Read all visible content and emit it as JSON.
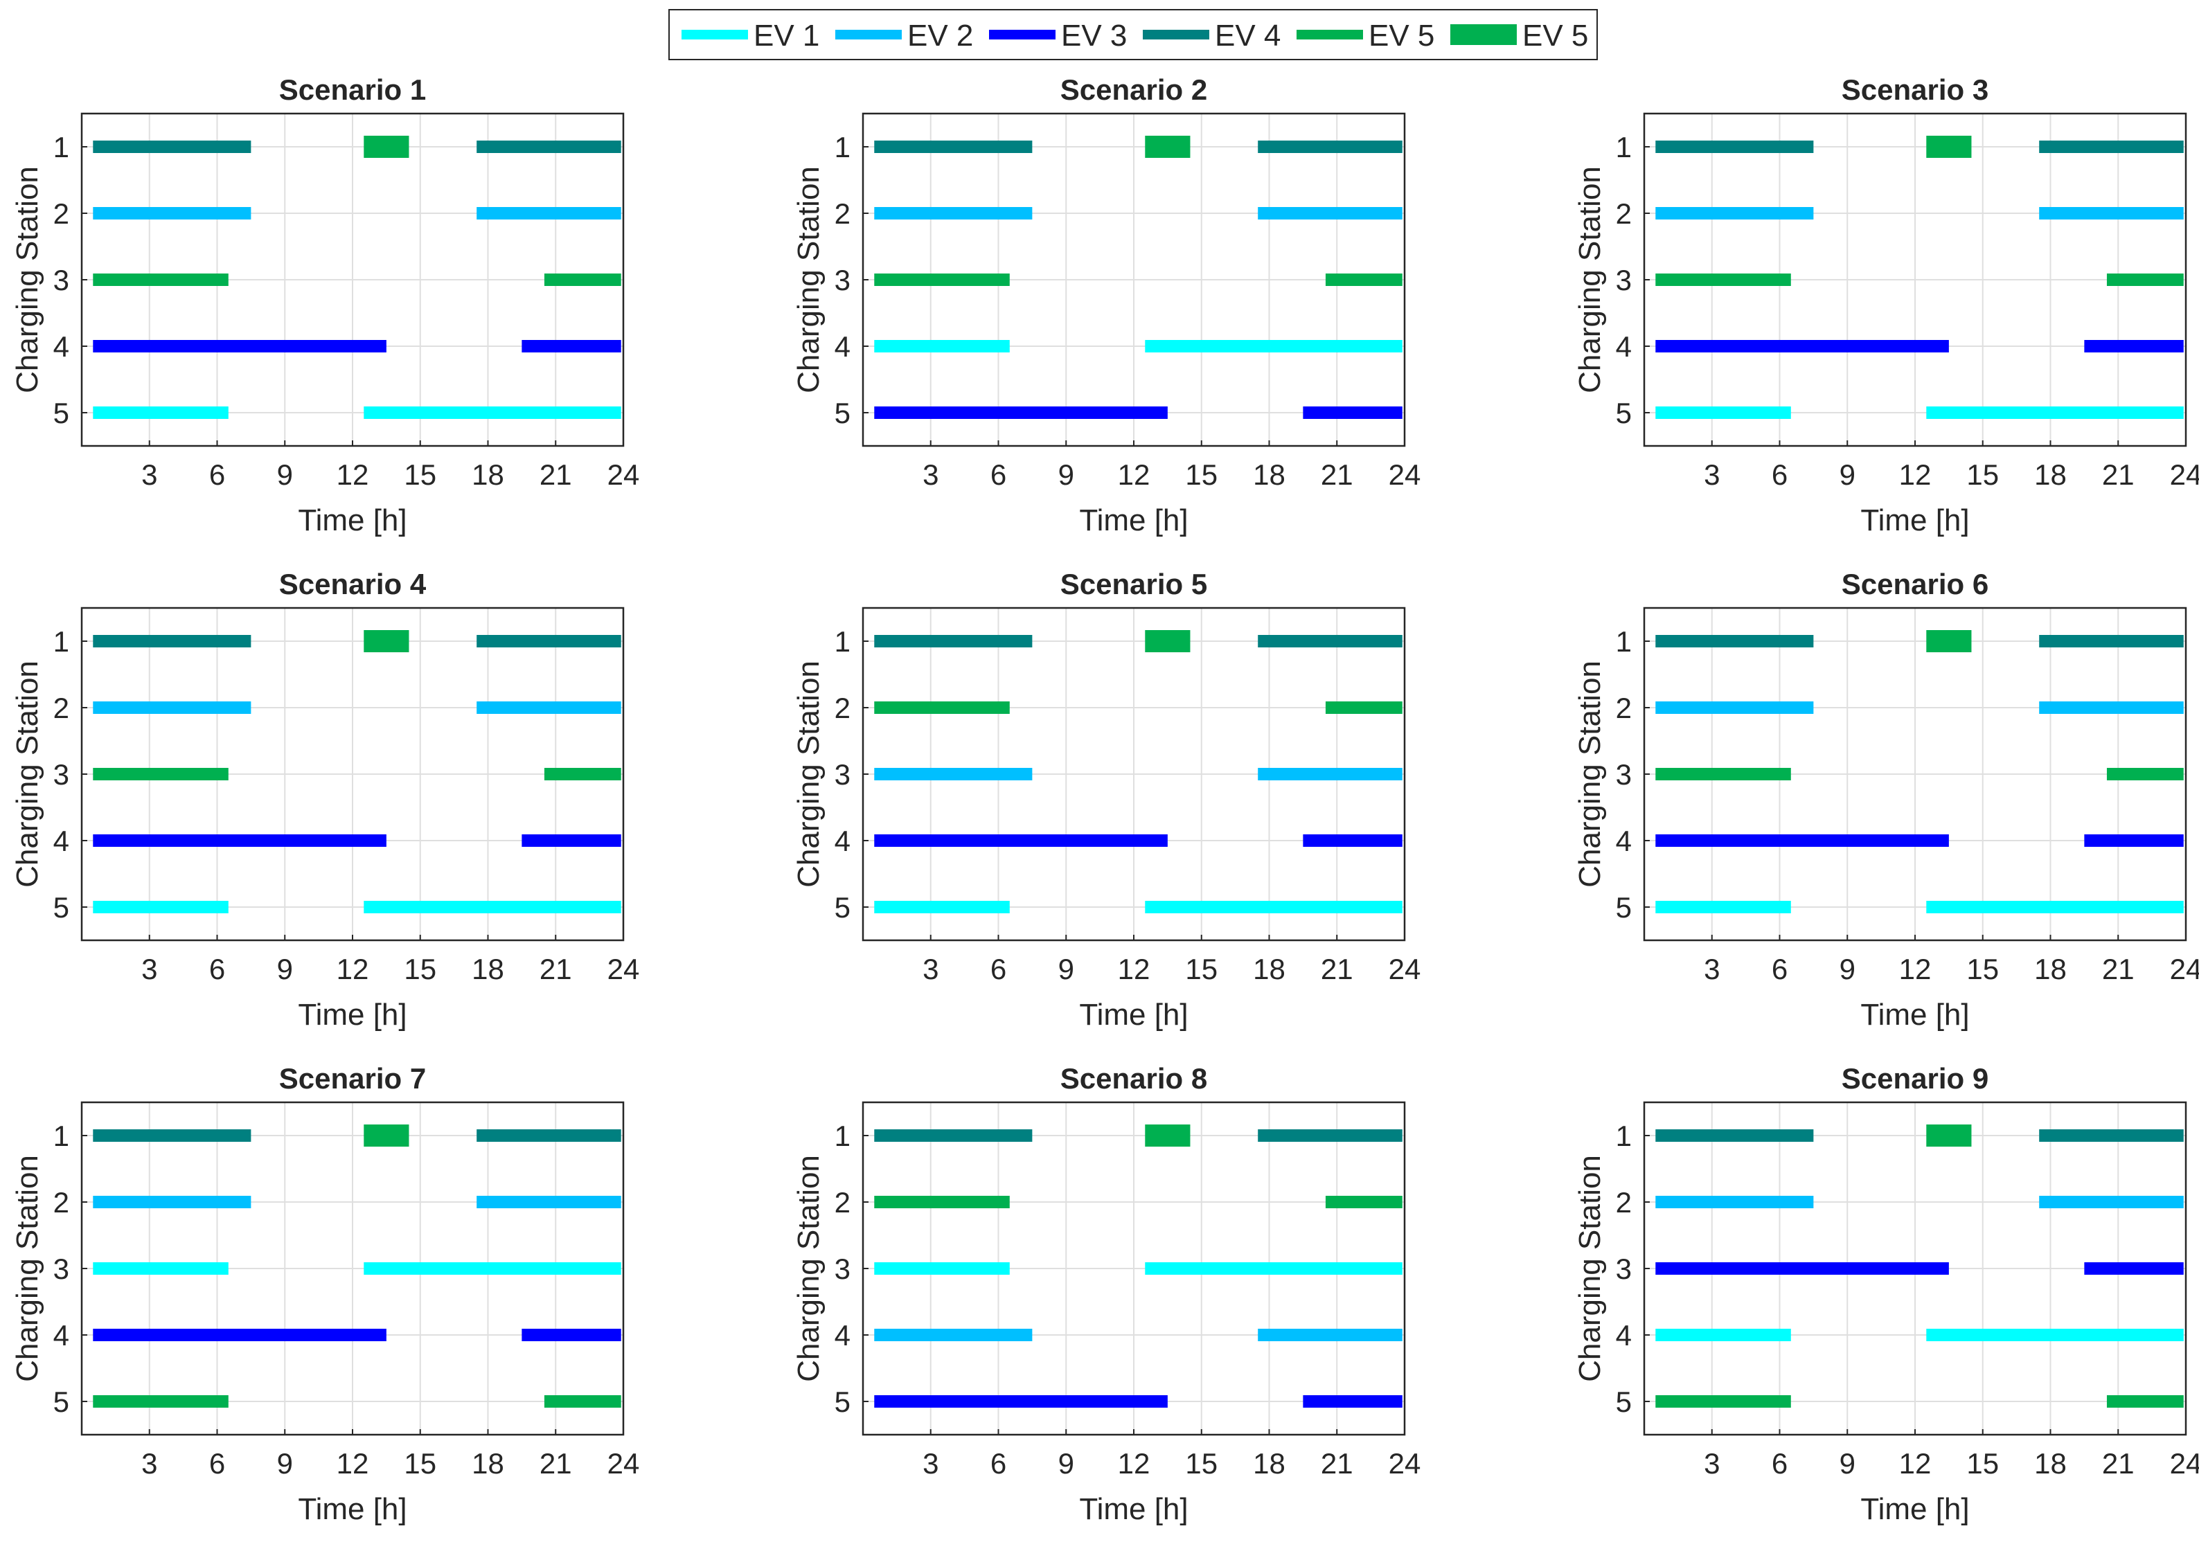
{
  "colors": {
    "EV1": "#00FFFF",
    "EV2": "#00BFFF",
    "EV3": "#0000FF",
    "EV4": "#008080",
    "EV5": "#00B050"
  },
  "legend": [
    {
      "label": "EV 1",
      "color_key": "EV1",
      "style": "thin"
    },
    {
      "label": "EV 2",
      "color_key": "EV2",
      "style": "thin"
    },
    {
      "label": "EV 3",
      "color_key": "EV3",
      "style": "thin"
    },
    {
      "label": "EV 4",
      "color_key": "EV4",
      "style": "thin"
    },
    {
      "label": "EV 5",
      "color_key": "EV5",
      "style": "thin"
    },
    {
      "label": "EV 5",
      "color_key": "EV5",
      "style": "thick"
    }
  ],
  "chart_data": [
    {
      "type": "bar",
      "title": "Scenario 1",
      "xlabel": "Time [h]",
      "ylabel": "Charging Station",
      "xlim": [
        0,
        24
      ],
      "ylim": [
        0.5,
        5.5
      ],
      "xticks": [
        "3",
        "6",
        "9",
        "12",
        "15",
        "18",
        "21",
        "24"
      ],
      "yticks": [
        "1",
        "2",
        "3",
        "4",
        "5"
      ],
      "bars": [
        {
          "station": 1,
          "start": 0.5,
          "end": 7.5,
          "ev": "EV4",
          "style": "thin"
        },
        {
          "station": 1,
          "start": 12.5,
          "end": 14.5,
          "ev": "EV5",
          "style": "thick"
        },
        {
          "station": 1,
          "start": 17.5,
          "end": 23.9,
          "ev": "EV4",
          "style": "thin"
        },
        {
          "station": 2,
          "start": 0.5,
          "end": 7.5,
          "ev": "EV2",
          "style": "thin"
        },
        {
          "station": 2,
          "start": 17.5,
          "end": 23.9,
          "ev": "EV2",
          "style": "thin"
        },
        {
          "station": 3,
          "start": 0.5,
          "end": 6.5,
          "ev": "EV5",
          "style": "thin"
        },
        {
          "station": 3,
          "start": 20.5,
          "end": 23.9,
          "ev": "EV5",
          "style": "thin"
        },
        {
          "station": 4,
          "start": 0.5,
          "end": 13.5,
          "ev": "EV3",
          "style": "thin"
        },
        {
          "station": 4,
          "start": 19.5,
          "end": 23.9,
          "ev": "EV3",
          "style": "thin"
        },
        {
          "station": 5,
          "start": 0.5,
          "end": 6.5,
          "ev": "EV1",
          "style": "thin"
        },
        {
          "station": 5,
          "start": 12.5,
          "end": 23.9,
          "ev": "EV1",
          "style": "thin"
        }
      ]
    },
    {
      "type": "bar",
      "title": "Scenario 2",
      "xlabel": "Time [h]",
      "ylabel": "Charging Station",
      "xlim": [
        0,
        24
      ],
      "ylim": [
        0.5,
        5.5
      ],
      "xticks": [
        "3",
        "6",
        "9",
        "12",
        "15",
        "18",
        "21",
        "24"
      ],
      "yticks": [
        "1",
        "2",
        "3",
        "4",
        "5"
      ],
      "bars": [
        {
          "station": 1,
          "start": 0.5,
          "end": 7.5,
          "ev": "EV4",
          "style": "thin"
        },
        {
          "station": 1,
          "start": 12.5,
          "end": 14.5,
          "ev": "EV5",
          "style": "thick"
        },
        {
          "station": 1,
          "start": 17.5,
          "end": 23.9,
          "ev": "EV4",
          "style": "thin"
        },
        {
          "station": 2,
          "start": 0.5,
          "end": 7.5,
          "ev": "EV2",
          "style": "thin"
        },
        {
          "station": 2,
          "start": 17.5,
          "end": 23.9,
          "ev": "EV2",
          "style": "thin"
        },
        {
          "station": 3,
          "start": 0.5,
          "end": 6.5,
          "ev": "EV5",
          "style": "thin"
        },
        {
          "station": 3,
          "start": 20.5,
          "end": 23.9,
          "ev": "EV5",
          "style": "thin"
        },
        {
          "station": 4,
          "start": 0.5,
          "end": 6.5,
          "ev": "EV1",
          "style": "thin"
        },
        {
          "station": 4,
          "start": 12.5,
          "end": 23.9,
          "ev": "EV1",
          "style": "thin"
        },
        {
          "station": 5,
          "start": 0.5,
          "end": 13.5,
          "ev": "EV3",
          "style": "thin"
        },
        {
          "station": 5,
          "start": 19.5,
          "end": 23.9,
          "ev": "EV3",
          "style": "thin"
        }
      ]
    },
    {
      "type": "bar",
      "title": "Scenario 3",
      "xlabel": "Time [h]",
      "ylabel": "Charging Station",
      "xlim": [
        0,
        24
      ],
      "ylim": [
        0.5,
        5.5
      ],
      "xticks": [
        "3",
        "6",
        "9",
        "12",
        "15",
        "18",
        "21",
        "24"
      ],
      "yticks": [
        "1",
        "2",
        "3",
        "4",
        "5"
      ],
      "bars": [
        {
          "station": 1,
          "start": 0.5,
          "end": 7.5,
          "ev": "EV4",
          "style": "thin"
        },
        {
          "station": 1,
          "start": 12.5,
          "end": 14.5,
          "ev": "EV5",
          "style": "thick"
        },
        {
          "station": 1,
          "start": 17.5,
          "end": 23.9,
          "ev": "EV4",
          "style": "thin"
        },
        {
          "station": 2,
          "start": 0.5,
          "end": 7.5,
          "ev": "EV2",
          "style": "thin"
        },
        {
          "station": 2,
          "start": 17.5,
          "end": 23.9,
          "ev": "EV2",
          "style": "thin"
        },
        {
          "station": 3,
          "start": 0.5,
          "end": 6.5,
          "ev": "EV5",
          "style": "thin"
        },
        {
          "station": 3,
          "start": 20.5,
          "end": 23.9,
          "ev": "EV5",
          "style": "thin"
        },
        {
          "station": 4,
          "start": 0.5,
          "end": 13.5,
          "ev": "EV3",
          "style": "thin"
        },
        {
          "station": 4,
          "start": 19.5,
          "end": 23.9,
          "ev": "EV3",
          "style": "thin"
        },
        {
          "station": 5,
          "start": 0.5,
          "end": 6.5,
          "ev": "EV1",
          "style": "thin"
        },
        {
          "station": 5,
          "start": 12.5,
          "end": 23.9,
          "ev": "EV1",
          "style": "thin"
        }
      ]
    },
    {
      "type": "bar",
      "title": "Scenario 4",
      "xlabel": "Time [h]",
      "ylabel": "Charging Station",
      "xlim": [
        0,
        24
      ],
      "ylim": [
        0.5,
        5.5
      ],
      "xticks": [
        "3",
        "6",
        "9",
        "12",
        "15",
        "18",
        "21",
        "24"
      ],
      "yticks": [
        "1",
        "2",
        "3",
        "4",
        "5"
      ],
      "bars": [
        {
          "station": 1,
          "start": 0.5,
          "end": 7.5,
          "ev": "EV4",
          "style": "thin"
        },
        {
          "station": 1,
          "start": 12.5,
          "end": 14.5,
          "ev": "EV5",
          "style": "thick"
        },
        {
          "station": 1,
          "start": 17.5,
          "end": 23.9,
          "ev": "EV4",
          "style": "thin"
        },
        {
          "station": 2,
          "start": 0.5,
          "end": 7.5,
          "ev": "EV2",
          "style": "thin"
        },
        {
          "station": 2,
          "start": 17.5,
          "end": 23.9,
          "ev": "EV2",
          "style": "thin"
        },
        {
          "station": 3,
          "start": 0.5,
          "end": 6.5,
          "ev": "EV5",
          "style": "thin"
        },
        {
          "station": 3,
          "start": 20.5,
          "end": 23.9,
          "ev": "EV5",
          "style": "thin"
        },
        {
          "station": 4,
          "start": 0.5,
          "end": 13.5,
          "ev": "EV3",
          "style": "thin"
        },
        {
          "station": 4,
          "start": 19.5,
          "end": 23.9,
          "ev": "EV3",
          "style": "thin"
        },
        {
          "station": 5,
          "start": 0.5,
          "end": 6.5,
          "ev": "EV1",
          "style": "thin"
        },
        {
          "station": 5,
          "start": 12.5,
          "end": 23.9,
          "ev": "EV1",
          "style": "thin"
        }
      ]
    },
    {
      "type": "bar",
      "title": "Scenario 5",
      "xlabel": "Time [h]",
      "ylabel": "Charging Station",
      "xlim": [
        0,
        24
      ],
      "ylim": [
        0.5,
        5.5
      ],
      "xticks": [
        "3",
        "6",
        "9",
        "12",
        "15",
        "18",
        "21",
        "24"
      ],
      "yticks": [
        "1",
        "2",
        "3",
        "4",
        "5"
      ],
      "bars": [
        {
          "station": 1,
          "start": 0.5,
          "end": 7.5,
          "ev": "EV4",
          "style": "thin"
        },
        {
          "station": 1,
          "start": 12.5,
          "end": 14.5,
          "ev": "EV5",
          "style": "thick"
        },
        {
          "station": 1,
          "start": 17.5,
          "end": 23.9,
          "ev": "EV4",
          "style": "thin"
        },
        {
          "station": 2,
          "start": 0.5,
          "end": 6.5,
          "ev": "EV5",
          "style": "thin"
        },
        {
          "station": 2,
          "start": 20.5,
          "end": 23.9,
          "ev": "EV5",
          "style": "thin"
        },
        {
          "station": 3,
          "start": 0.5,
          "end": 7.5,
          "ev": "EV2",
          "style": "thin"
        },
        {
          "station": 3,
          "start": 17.5,
          "end": 23.9,
          "ev": "EV2",
          "style": "thin"
        },
        {
          "station": 4,
          "start": 0.5,
          "end": 13.5,
          "ev": "EV3",
          "style": "thin"
        },
        {
          "station": 4,
          "start": 19.5,
          "end": 23.9,
          "ev": "EV3",
          "style": "thin"
        },
        {
          "station": 5,
          "start": 0.5,
          "end": 6.5,
          "ev": "EV1",
          "style": "thin"
        },
        {
          "station": 5,
          "start": 12.5,
          "end": 23.9,
          "ev": "EV1",
          "style": "thin"
        }
      ]
    },
    {
      "type": "bar",
      "title": "Scenario 6",
      "xlabel": "Time [h]",
      "ylabel": "Charging Station",
      "xlim": [
        0,
        24
      ],
      "ylim": [
        0.5,
        5.5
      ],
      "xticks": [
        "3",
        "6",
        "9",
        "12",
        "15",
        "18",
        "21",
        "24"
      ],
      "yticks": [
        "1",
        "2",
        "3",
        "4",
        "5"
      ],
      "bars": [
        {
          "station": 1,
          "start": 0.5,
          "end": 7.5,
          "ev": "EV4",
          "style": "thin"
        },
        {
          "station": 1,
          "start": 12.5,
          "end": 14.5,
          "ev": "EV5",
          "style": "thick"
        },
        {
          "station": 1,
          "start": 17.5,
          "end": 23.9,
          "ev": "EV4",
          "style": "thin"
        },
        {
          "station": 2,
          "start": 0.5,
          "end": 7.5,
          "ev": "EV2",
          "style": "thin"
        },
        {
          "station": 2,
          "start": 17.5,
          "end": 23.9,
          "ev": "EV2",
          "style": "thin"
        },
        {
          "station": 3,
          "start": 0.5,
          "end": 6.5,
          "ev": "EV5",
          "style": "thin"
        },
        {
          "station": 3,
          "start": 20.5,
          "end": 23.9,
          "ev": "EV5",
          "style": "thin"
        },
        {
          "station": 4,
          "start": 0.5,
          "end": 13.5,
          "ev": "EV3",
          "style": "thin"
        },
        {
          "station": 4,
          "start": 19.5,
          "end": 23.9,
          "ev": "EV3",
          "style": "thin"
        },
        {
          "station": 5,
          "start": 0.5,
          "end": 6.5,
          "ev": "EV1",
          "style": "thin"
        },
        {
          "station": 5,
          "start": 12.5,
          "end": 23.9,
          "ev": "EV1",
          "style": "thin"
        }
      ]
    },
    {
      "type": "bar",
      "title": "Scenario 7",
      "xlabel": "Time [h]",
      "ylabel": "Charging Station",
      "xlim": [
        0,
        24
      ],
      "ylim": [
        0.5,
        5.5
      ],
      "xticks": [
        "3",
        "6",
        "9",
        "12",
        "15",
        "18",
        "21",
        "24"
      ],
      "yticks": [
        "1",
        "2",
        "3",
        "4",
        "5"
      ],
      "bars": [
        {
          "station": 1,
          "start": 0.5,
          "end": 7.5,
          "ev": "EV4",
          "style": "thin"
        },
        {
          "station": 1,
          "start": 12.5,
          "end": 14.5,
          "ev": "EV5",
          "style": "thick"
        },
        {
          "station": 1,
          "start": 17.5,
          "end": 23.9,
          "ev": "EV4",
          "style": "thin"
        },
        {
          "station": 2,
          "start": 0.5,
          "end": 7.5,
          "ev": "EV2",
          "style": "thin"
        },
        {
          "station": 2,
          "start": 17.5,
          "end": 23.9,
          "ev": "EV2",
          "style": "thin"
        },
        {
          "station": 3,
          "start": 0.5,
          "end": 6.5,
          "ev": "EV1",
          "style": "thin"
        },
        {
          "station": 3,
          "start": 12.5,
          "end": 23.9,
          "ev": "EV1",
          "style": "thin"
        },
        {
          "station": 4,
          "start": 0.5,
          "end": 13.5,
          "ev": "EV3",
          "style": "thin"
        },
        {
          "station": 4,
          "start": 19.5,
          "end": 23.9,
          "ev": "EV3",
          "style": "thin"
        },
        {
          "station": 5,
          "start": 0.5,
          "end": 6.5,
          "ev": "EV5",
          "style": "thin"
        },
        {
          "station": 5,
          "start": 20.5,
          "end": 23.9,
          "ev": "EV5",
          "style": "thin"
        }
      ]
    },
    {
      "type": "bar",
      "title": "Scenario 8",
      "xlabel": "Time [h]",
      "ylabel": "Charging Station",
      "xlim": [
        0,
        24
      ],
      "ylim": [
        0.5,
        5.5
      ],
      "xticks": [
        "3",
        "6",
        "9",
        "12",
        "15",
        "18",
        "21",
        "24"
      ],
      "yticks": [
        "1",
        "2",
        "3",
        "4",
        "5"
      ],
      "bars": [
        {
          "station": 1,
          "start": 0.5,
          "end": 7.5,
          "ev": "EV4",
          "style": "thin"
        },
        {
          "station": 1,
          "start": 12.5,
          "end": 14.5,
          "ev": "EV5",
          "style": "thick"
        },
        {
          "station": 1,
          "start": 17.5,
          "end": 23.9,
          "ev": "EV4",
          "style": "thin"
        },
        {
          "station": 2,
          "start": 0.5,
          "end": 6.5,
          "ev": "EV5",
          "style": "thin"
        },
        {
          "station": 2,
          "start": 20.5,
          "end": 23.9,
          "ev": "EV5",
          "style": "thin"
        },
        {
          "station": 3,
          "start": 0.5,
          "end": 6.5,
          "ev": "EV1",
          "style": "thin"
        },
        {
          "station": 3,
          "start": 12.5,
          "end": 23.9,
          "ev": "EV1",
          "style": "thin"
        },
        {
          "station": 4,
          "start": 0.5,
          "end": 7.5,
          "ev": "EV2",
          "style": "thin"
        },
        {
          "station": 4,
          "start": 17.5,
          "end": 23.9,
          "ev": "EV2",
          "style": "thin"
        },
        {
          "station": 5,
          "start": 0.5,
          "end": 13.5,
          "ev": "EV3",
          "style": "thin"
        },
        {
          "station": 5,
          "start": 19.5,
          "end": 23.9,
          "ev": "EV3",
          "style": "thin"
        }
      ]
    },
    {
      "type": "bar",
      "title": "Scenario 9",
      "xlabel": "Time [h]",
      "ylabel": "Charging Station",
      "xlim": [
        0,
        24
      ],
      "ylim": [
        0.5,
        5.5
      ],
      "xticks": [
        "3",
        "6",
        "9",
        "12",
        "15",
        "18",
        "21",
        "24"
      ],
      "yticks": [
        "1",
        "2",
        "3",
        "4",
        "5"
      ],
      "bars": [
        {
          "station": 1,
          "start": 0.5,
          "end": 7.5,
          "ev": "EV4",
          "style": "thin"
        },
        {
          "station": 1,
          "start": 12.5,
          "end": 14.5,
          "ev": "EV5",
          "style": "thick"
        },
        {
          "station": 1,
          "start": 17.5,
          "end": 23.9,
          "ev": "EV4",
          "style": "thin"
        },
        {
          "station": 2,
          "start": 0.5,
          "end": 7.5,
          "ev": "EV2",
          "style": "thin"
        },
        {
          "station": 2,
          "start": 17.5,
          "end": 23.9,
          "ev": "EV2",
          "style": "thin"
        },
        {
          "station": 3,
          "start": 0.5,
          "end": 13.5,
          "ev": "EV3",
          "style": "thin"
        },
        {
          "station": 3,
          "start": 19.5,
          "end": 23.9,
          "ev": "EV3",
          "style": "thin"
        },
        {
          "station": 4,
          "start": 0.5,
          "end": 6.5,
          "ev": "EV1",
          "style": "thin"
        },
        {
          "station": 4,
          "start": 12.5,
          "end": 23.9,
          "ev": "EV1",
          "style": "thin"
        },
        {
          "station": 5,
          "start": 0.5,
          "end": 6.5,
          "ev": "EV5",
          "style": "thin"
        },
        {
          "station": 5,
          "start": 20.5,
          "end": 23.9,
          "ev": "EV5",
          "style": "thin"
        }
      ]
    }
  ]
}
